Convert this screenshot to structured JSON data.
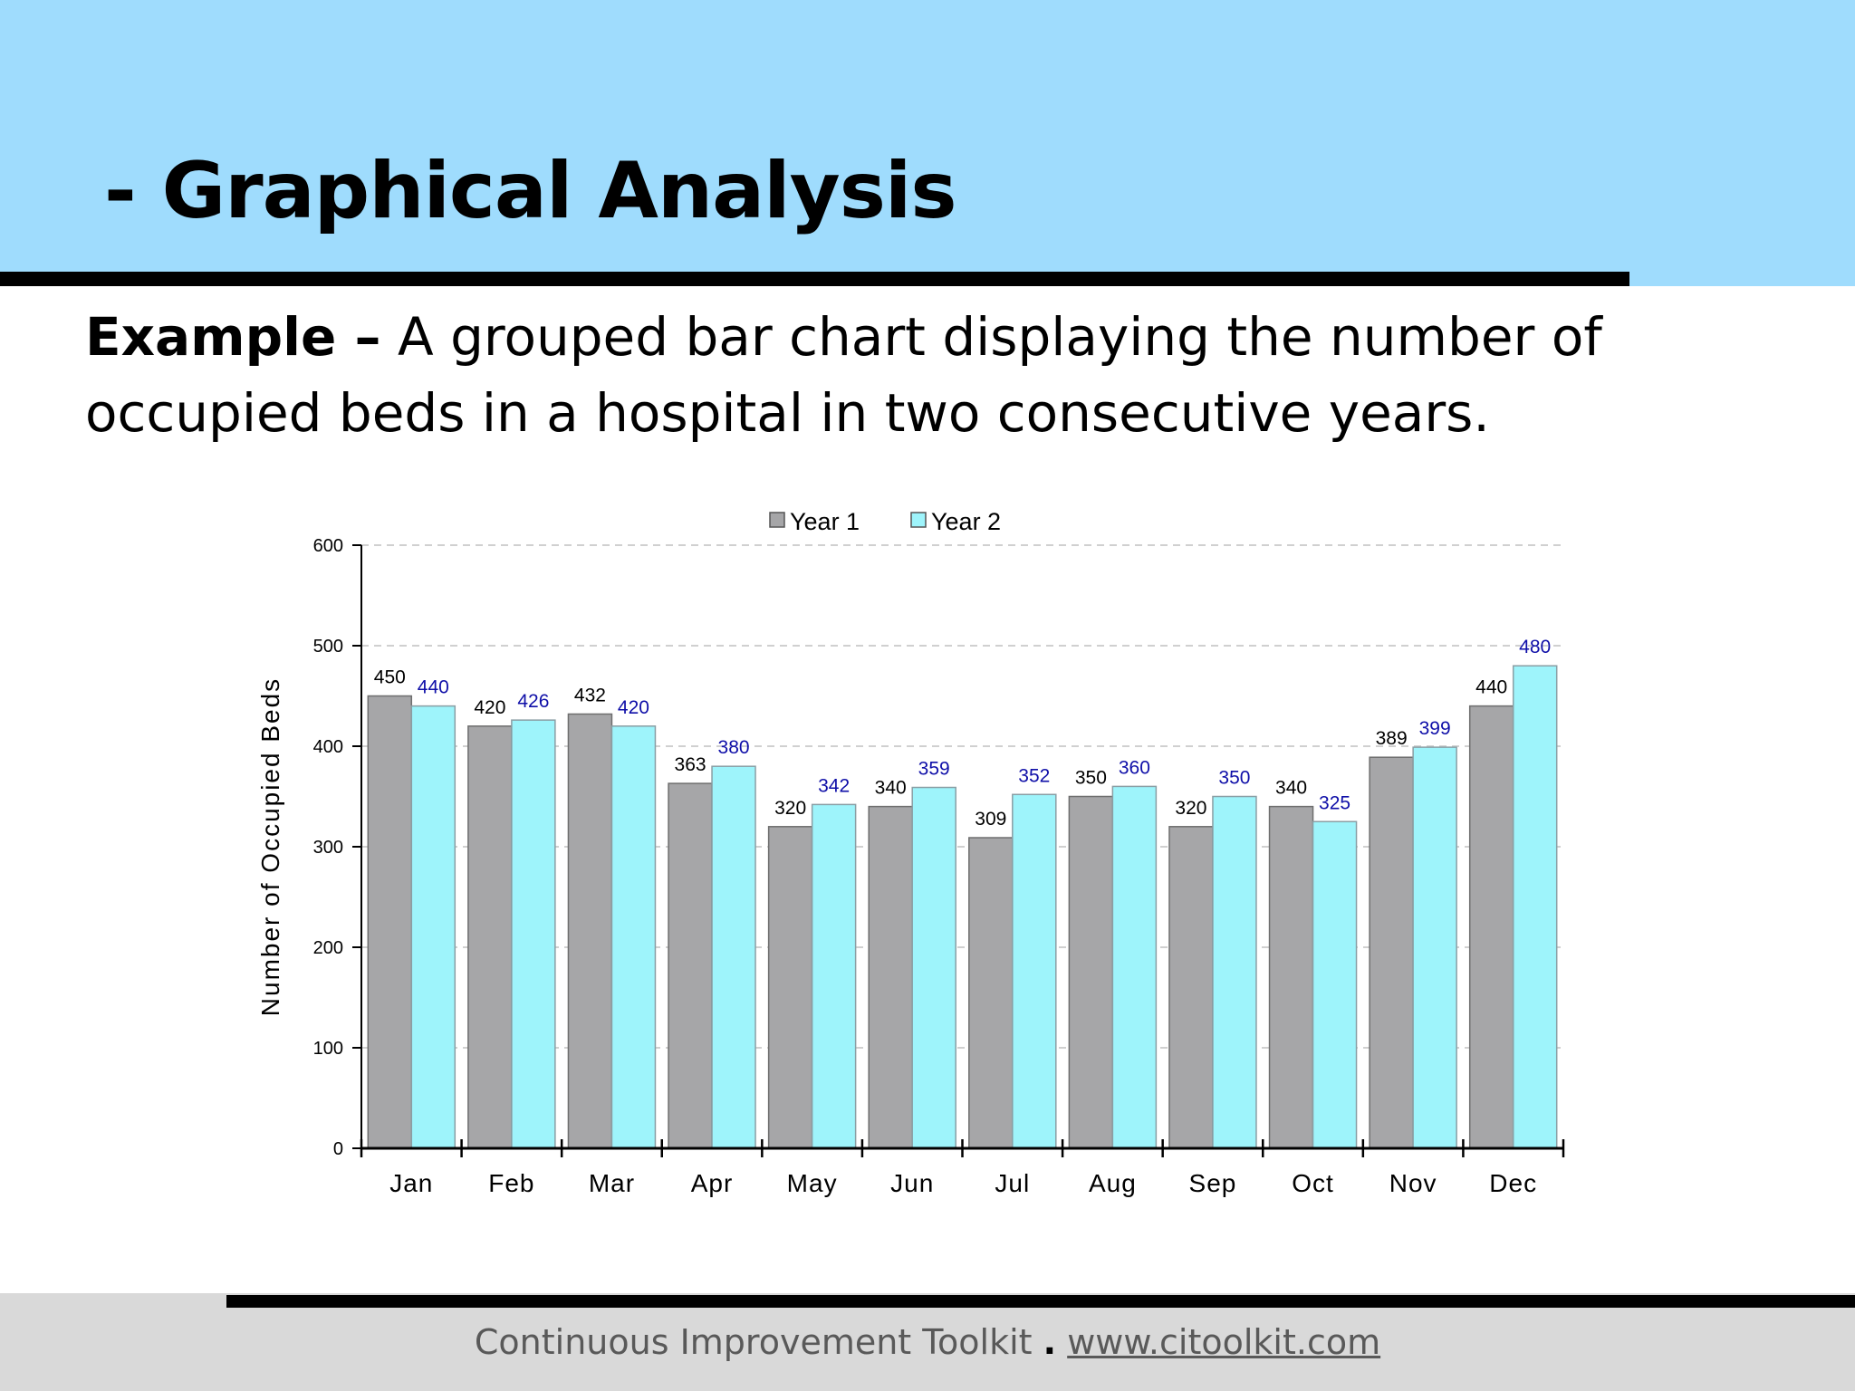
{
  "slide": {
    "title": "- Graphical Analysis",
    "intro_lead": "Example –",
    "intro_text": " A grouped bar chart displaying the number of occupied beds in a hospital in two consecutive years."
  },
  "footer": {
    "brand": "Continuous Improvement Toolkit",
    "separator": ".",
    "url": "www.citoolkit.com"
  },
  "colors": {
    "header_band": "#9fdcfd",
    "year1": "#a6a6a8",
    "year2": "#9ef4fb",
    "year1_label": "#000000",
    "year2_label": "#0f0fa8"
  },
  "chart_data": {
    "type": "bar",
    "title": "",
    "xlabel": "",
    "ylabel": "Number of Occupied Beds",
    "ylim": [
      0,
      600
    ],
    "yticks": [
      0,
      100,
      200,
      300,
      400,
      500,
      600
    ],
    "categories": [
      "Jan",
      "Feb",
      "Mar",
      "Apr",
      "May",
      "Jun",
      "Jul",
      "Aug",
      "Sep",
      "Oct",
      "Nov",
      "Dec"
    ],
    "series": [
      {
        "name": "Year 1",
        "values": [
          450,
          420,
          432,
          363,
          320,
          340,
          309,
          350,
          320,
          340,
          389,
          440
        ]
      },
      {
        "name": "Year 2",
        "values": [
          440,
          426,
          420,
          380,
          342,
          359,
          352,
          360,
          350,
          325,
          399,
          480
        ]
      }
    ],
    "legend": "top-center",
    "grid": "horizontal dashed",
    "data_labels": true
  }
}
